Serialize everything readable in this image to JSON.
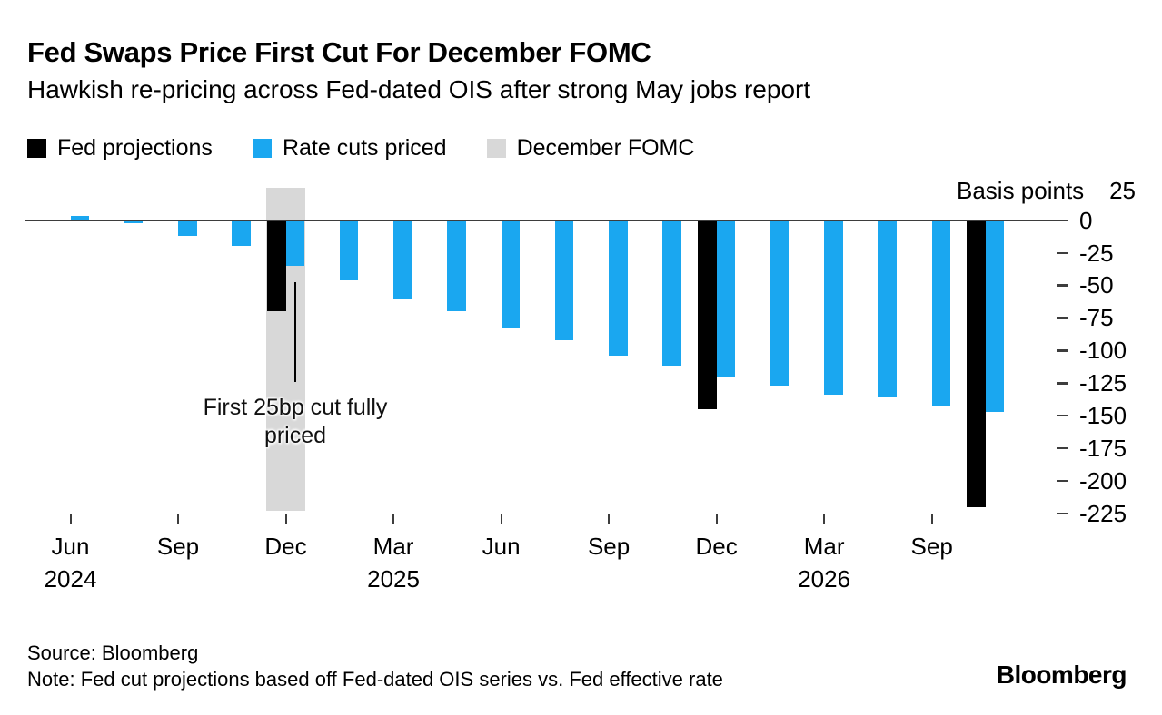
{
  "header": {
    "title": "Fed Swaps Price First Cut For December FOMC",
    "subtitle": "Hawkish re-pricing across Fed-dated OIS after strong May jobs report"
  },
  "legend": {
    "items": [
      {
        "label": "Fed projections",
        "color": "#000000"
      },
      {
        "label": "Rate cuts priced",
        "color": "#1aa7f0"
      },
      {
        "label": "December FOMC",
        "color": "#d8d8d8"
      }
    ]
  },
  "chart_data": {
    "type": "bar",
    "title": "Fed Swaps Price First Cut For December FOMC",
    "ylabel": "Basis points",
    "unit": "basis points",
    "ylim": [
      -225,
      25
    ],
    "y_top_tick_label": "25",
    "yticks": [
      0,
      -25,
      -50,
      -75,
      -100,
      -125,
      -150,
      -175,
      -200,
      -225
    ],
    "legend_position": "top",
    "grid": false,
    "colors": {
      "fed_projections": "#000000",
      "rate_cuts_priced": "#1aa7f0",
      "december_fomc_band": "#d8d8d8"
    },
    "series": [
      {
        "name": "Rate cuts priced",
        "values": [
          3,
          -2,
          -12,
          -20,
          -35,
          -46,
          -60,
          -70,
          -83,
          -92,
          -104,
          -112,
          -120,
          -127,
          -134,
          -136,
          -142,
          -147
        ]
      },
      {
        "name": "Fed projections",
        "values": [
          null,
          null,
          null,
          null,
          -70,
          null,
          null,
          null,
          null,
          null,
          null,
          null,
          -145,
          null,
          null,
          null,
          null,
          -220
        ]
      }
    ],
    "meetings": [
      {
        "id": "jun-2024",
        "tick": "Jun",
        "year": "2024",
        "rate_cuts_priced": 3,
        "fed_projection": null,
        "december_fomc": false
      },
      {
        "id": "jul-2024",
        "tick": null,
        "year": null,
        "rate_cuts_priced": -2,
        "fed_projection": null,
        "december_fomc": false
      },
      {
        "id": "sep-2024",
        "tick": "Sep",
        "year": null,
        "rate_cuts_priced": -12,
        "fed_projection": null,
        "december_fomc": false
      },
      {
        "id": "nov-2024",
        "tick": null,
        "year": null,
        "rate_cuts_priced": -20,
        "fed_projection": null,
        "december_fomc": false
      },
      {
        "id": "dec-2024",
        "tick": "Dec",
        "year": null,
        "rate_cuts_priced": -35,
        "fed_projection": -70,
        "december_fomc": true
      },
      {
        "id": "jan-2025",
        "tick": null,
        "year": null,
        "rate_cuts_priced": -46,
        "fed_projection": null,
        "december_fomc": false
      },
      {
        "id": "mar-2025",
        "tick": "Mar",
        "year": "2025",
        "rate_cuts_priced": -60,
        "fed_projection": null,
        "december_fomc": false
      },
      {
        "id": "may-2025",
        "tick": null,
        "year": null,
        "rate_cuts_priced": -70,
        "fed_projection": null,
        "december_fomc": false
      },
      {
        "id": "jun-2025",
        "tick": "Jun",
        "year": null,
        "rate_cuts_priced": -83,
        "fed_projection": null,
        "december_fomc": false
      },
      {
        "id": "jul-2025",
        "tick": null,
        "year": null,
        "rate_cuts_priced": -92,
        "fed_projection": null,
        "december_fomc": false
      },
      {
        "id": "sep-2025",
        "tick": "Sep",
        "year": null,
        "rate_cuts_priced": -104,
        "fed_projection": null,
        "december_fomc": false
      },
      {
        "id": "oct-2025",
        "tick": null,
        "year": null,
        "rate_cuts_priced": -112,
        "fed_projection": null,
        "december_fomc": false
      },
      {
        "id": "dec-2025",
        "tick": "Dec",
        "year": null,
        "rate_cuts_priced": -120,
        "fed_projection": -145,
        "december_fomc": false
      },
      {
        "id": "jan-2026",
        "tick": null,
        "year": null,
        "rate_cuts_priced": -127,
        "fed_projection": null,
        "december_fomc": false
      },
      {
        "id": "mar-2026",
        "tick": "Mar",
        "year": "2026",
        "rate_cuts_priced": -134,
        "fed_projection": null,
        "december_fomc": false
      },
      {
        "id": "jun-2026",
        "tick": null,
        "year": null,
        "rate_cuts_priced": -136,
        "fed_projection": null,
        "december_fomc": false
      },
      {
        "id": "sep-2026",
        "tick": "Sep",
        "year": null,
        "rate_cuts_priced": -142,
        "fed_projection": null,
        "december_fomc": false
      },
      {
        "id": "dec-2026",
        "tick": null,
        "year": null,
        "rate_cuts_priced": -147,
        "fed_projection": -220,
        "december_fomc": false
      }
    ],
    "annotation": {
      "lines": [
        "First 25bp cut fully",
        "priced"
      ],
      "points_to": "dec-2024"
    }
  },
  "footer": {
    "source": "Source: Bloomberg",
    "note": "Note: Fed cut projections based off Fed-dated OIS series vs. Fed effective rate",
    "logo": "Bloomberg"
  }
}
